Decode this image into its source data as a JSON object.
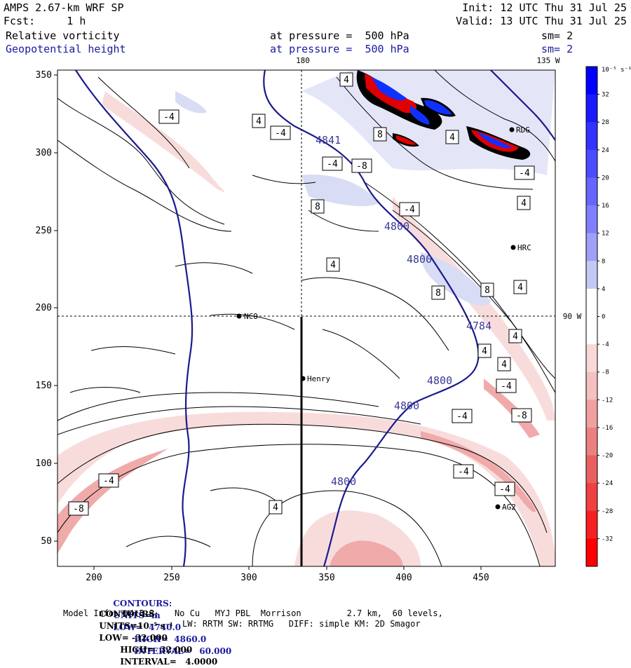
{
  "header": {
    "model_title": "AMPS 2.67-km WRF SP",
    "forecast": "Fcst:     1 h",
    "init": "Init: 12 UTC Thu 31 Jul 25",
    "valid": "Valid: 13 UTC Thu 31 Jul 25",
    "field1_name": "Relative vorticity",
    "field1_level": "at pressure =  500 hPa",
    "field1_smooth": "sm= 2",
    "field2_name": "Geopotential height",
    "field2_level": "at pressure =  500 hPa",
    "field2_smooth": "sm= 2"
  },
  "map": {
    "meridian_labels": [
      "180",
      "135 W",
      "90 W"
    ],
    "stations": [
      "NCO",
      "Henry",
      "HRC",
      "AG2",
      "RDG"
    ],
    "height_contour_labels": [
      "4800",
      "4800",
      "4800",
      "4800",
      "4800",
      "4784",
      "4841"
    ],
    "vorticity_box_labels": [
      "-4",
      "4",
      "-4",
      "4",
      "8",
      "-4",
      "-8",
      "8",
      "-4",
      "8",
      "4",
      "4",
      "8",
      "4",
      "4",
      "-4",
      "4",
      "4",
      "-8",
      "-4",
      "-4",
      "-4",
      "-8",
      "-4",
      "4",
      "4",
      "-4"
    ],
    "x_ticks": [
      "200",
      "250",
      "300",
      "350",
      "400",
      "450"
    ],
    "y_ticks": [
      "350",
      "300",
      "250",
      "200",
      "150",
      "100",
      "50"
    ]
  },
  "colorbar": {
    "unit": "10⁻⁵ s⁻¹",
    "labels": [
      "32",
      "28",
      "24",
      "20",
      "16",
      "12",
      "8",
      "4",
      "0",
      "-4",
      "-8",
      "-12",
      "-16",
      "-20",
      "-24",
      "-28",
      "-32"
    ],
    "colors": {
      "positive_strong": "#0000ff",
      "positive_weak": "#d8dcf4",
      "negative_weak": "#f8dcdc",
      "negative_strong": "#ff0000",
      "height_contour": "#1a1a8c"
    }
  },
  "footer": {
    "line1_label": "CONTOURS:",
    "line1_units": "UNITS=m",
    "line1_low": "LOW=  4740.0",
    "line1_high": "HIGH=  4860.0",
    "line1_interval": "INTERVAL=   60.000",
    "line2_label": "CONTOURS:",
    "line2_units": "UNITS=10⁻⁵ s⁻¹",
    "line2_low": "LOW= -32.000",
    "line2_high": "HIGH=  32.000",
    "line2_interval": "INTERVAL=   4.0000",
    "model_info": "Model Info: V4.3.3    No Cu   MYJ PBL  Morrison         2.7 km,  60 levels,",
    "model_info2": "LW: RRTM SW: RRTMG   DIFF: simple KM: 2D Smagor"
  }
}
